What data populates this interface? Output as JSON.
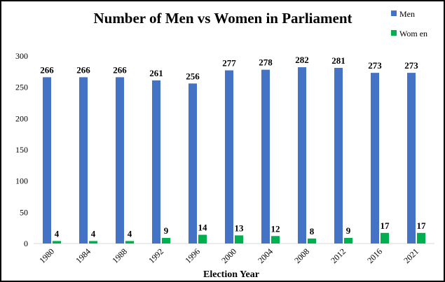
{
  "chart_data": {
    "type": "bar",
    "title": "Number  of Men vs Women  in  Parliament",
    "xlabel": "Election Year",
    "ylabel": "",
    "ylim": [
      0,
      300
    ],
    "yticks": [
      0,
      50,
      100,
      150,
      200,
      250,
      300
    ],
    "grid": false,
    "legend_position": "top-right",
    "categories": [
      "1980",
      "1984",
      "1988",
      "1992",
      "1996",
      "2000",
      "2004",
      "2008",
      "2012",
      "2016",
      "2021"
    ],
    "series": [
      {
        "name": "Men",
        "color": "#4472C4",
        "values": [
          266,
          266,
          266,
          261,
          256,
          277,
          278,
          282,
          281,
          273,
          273
        ]
      },
      {
        "name": "Wom en",
        "color": "#00B050",
        "values": [
          4,
          4,
          4,
          9,
          14,
          13,
          12,
          8,
          9,
          17,
          17
        ]
      }
    ]
  }
}
